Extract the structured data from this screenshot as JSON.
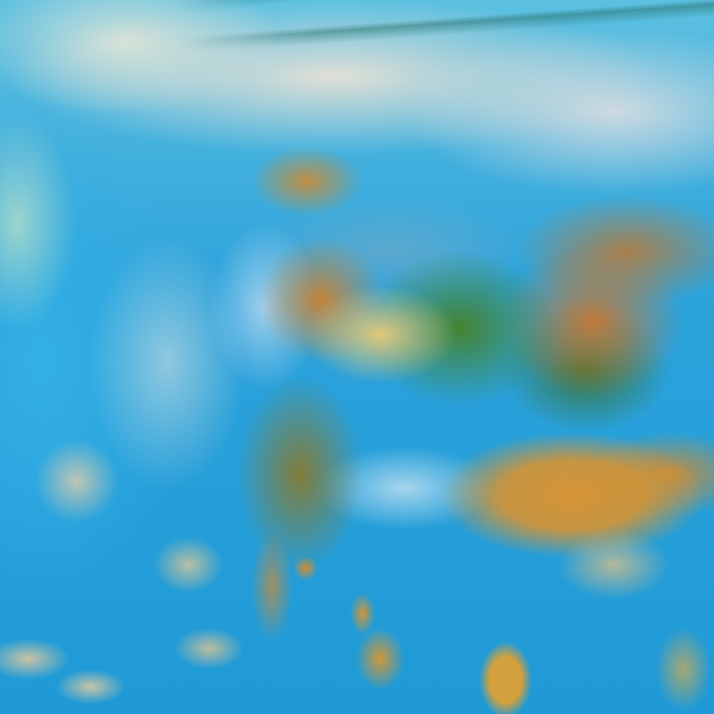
{
  "image": {
    "kind": "false-color satellite imagery of a cyclonic cloud system",
    "colors": {
      "ocean": "#2a9fd6",
      "high_cloud": "#e8e2d6",
      "storm_core": "#d69434",
      "vegetation_green": "#46822a",
      "cloud_cyan": "#b4dcf0"
    }
  }
}
